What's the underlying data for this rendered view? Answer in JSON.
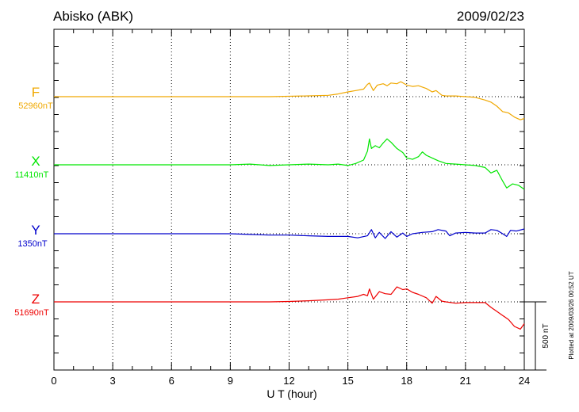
{
  "chart_data": {
    "type": "line",
    "title": "Abisko (ABK)",
    "date": "2009/02/23",
    "xlabel": "U T (hour)",
    "xlim": [
      0,
      24
    ],
    "x_ticks": [
      "0",
      "3",
      "6",
      "9",
      "12",
      "15",
      "18",
      "21",
      "24"
    ],
    "scale_label": "500 nT",
    "plotted_note": "Plotted at 2009/03/26 00:52 UT",
    "grid": true,
    "legend": "left",
    "series": [
      {
        "name": "F",
        "baseline_label": "52960nT",
        "color": "#f0a800",
        "baseline_nT": 52960,
        "x": [
          0,
          3,
          6,
          9,
          10,
          11,
          12,
          13,
          14,
          14.5,
          15,
          15.4,
          15.8,
          16.0,
          16.1,
          16.3,
          16.5,
          16.8,
          17.0,
          17.2,
          17.5,
          17.7,
          18.0,
          18.3,
          18.6,
          19.0,
          19.3,
          19.5,
          19.8,
          20.0,
          20.5,
          21.0,
          21.5,
          22.0,
          22.3,
          22.6,
          22.9,
          23.2,
          23.5,
          23.8,
          24.0
        ],
        "values": [
          0,
          0,
          0,
          0,
          0,
          0,
          3,
          6,
          10,
          20,
          35,
          45,
          55,
          90,
          100,
          45,
          85,
          95,
          80,
          100,
          95,
          110,
          85,
          75,
          80,
          60,
          35,
          45,
          10,
          5,
          5,
          0,
          -5,
          -25,
          -40,
          -70,
          -110,
          -120,
          -150,
          -170,
          -160
        ]
      },
      {
        "name": "X",
        "baseline_label": "11410nT",
        "color": "#00e600",
        "baseline_nT": 11410,
        "x": [
          0,
          3,
          6,
          9,
          10,
          11,
          12,
          13,
          14,
          14.5,
          15,
          15.4,
          15.8,
          16.0,
          16.1,
          16.2,
          16.4,
          16.6,
          16.8,
          17.0,
          17.2,
          17.5,
          17.8,
          18.0,
          18.3,
          18.6,
          18.8,
          19.0,
          19.3,
          19.6,
          20.0,
          20.5,
          21.0,
          21.5,
          22.0,
          22.3,
          22.6,
          22.9,
          23.1,
          23.4,
          23.7,
          24.0
        ],
        "values": [
          0,
          0,
          0,
          0,
          5,
          -5,
          0,
          5,
          0,
          5,
          -5,
          10,
          35,
          100,
          190,
          120,
          140,
          125,
          160,
          190,
          165,
          120,
          90,
          50,
          40,
          60,
          95,
          70,
          50,
          30,
          10,
          5,
          0,
          -5,
          -20,
          -60,
          -40,
          -120,
          -170,
          -140,
          -150,
          -180
        ]
      },
      {
        "name": "Y",
        "baseline_label": "1350nT",
        "color": "#0000cc",
        "baseline_nT": 1350,
        "x": [
          0,
          3,
          6,
          9,
          10,
          11,
          12,
          13,
          14,
          15,
          15.5,
          16.0,
          16.2,
          16.4,
          16.6,
          16.9,
          17.2,
          17.5,
          17.8,
          18.0,
          18.3,
          18.8,
          19.3,
          19.6,
          20.0,
          20.2,
          20.5,
          21.0,
          21.5,
          22.0,
          22.3,
          22.6,
          22.9,
          23.1,
          23.3,
          23.6,
          24.0
        ],
        "values": [
          0,
          0,
          0,
          0,
          -5,
          -10,
          -10,
          -15,
          -20,
          -20,
          -30,
          -15,
          30,
          -30,
          10,
          -35,
          15,
          -25,
          5,
          -20,
          0,
          10,
          15,
          30,
          20,
          -15,
          5,
          10,
          5,
          5,
          30,
          25,
          0,
          -20,
          25,
          20,
          35
        ]
      },
      {
        "name": "Z",
        "baseline_label": "51690nT",
        "color": "#ee0000",
        "baseline_nT": 51690,
        "x": [
          0,
          3,
          6,
          9,
          10,
          11,
          12,
          13,
          14,
          14.5,
          15,
          15.5,
          15.8,
          16.0,
          16.1,
          16.3,
          16.6,
          16.9,
          17.2,
          17.5,
          17.8,
          18.0,
          18.3,
          18.6,
          19.0,
          19.3,
          19.5,
          19.8,
          20.0,
          20.5,
          21.0,
          21.5,
          22.0,
          22.3,
          22.6,
          22.9,
          23.2,
          23.5,
          23.8,
          24.0
        ],
        "values": [
          0,
          0,
          0,
          0,
          0,
          0,
          3,
          8,
          15,
          20,
          30,
          40,
          55,
          45,
          95,
          20,
          75,
          60,
          55,
          110,
          90,
          95,
          70,
          55,
          30,
          -10,
          40,
          5,
          0,
          -10,
          -5,
          -5,
          -5,
          -40,
          -70,
          -100,
          -130,
          -180,
          -200,
          -160
        ]
      }
    ]
  }
}
